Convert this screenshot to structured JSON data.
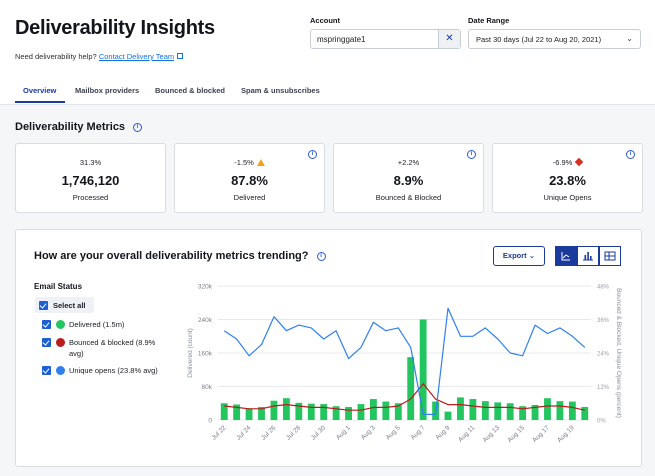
{
  "header": {
    "title": "Deliverability Insights",
    "help_text": "Need deliverability help?",
    "help_link": "Contact Delivery Team",
    "account_label": "Account",
    "account_value": "mspringgate1",
    "date_label": "Date Range",
    "date_value": "Past 30 days (Jul 22 to Aug 20, 2021)"
  },
  "tabs": [
    "Overview",
    "Mailbox providers",
    "Bounced & blocked",
    "Spam & unsubscribes"
  ],
  "metrics": {
    "title": "Deliverability Metrics",
    "cards": [
      {
        "pct": "31.3%",
        "value": "1,746,120",
        "label": "Processed"
      },
      {
        "pct": "-1.5%",
        "value": "87.8%",
        "label": "Delivered",
        "indicator": "warning-icon"
      },
      {
        "pct": "+2.2%",
        "value": "8.9%",
        "label": "Bounced & Blocked"
      },
      {
        "pct": "-6.9%",
        "value": "23.8%",
        "label": "Unique Opens",
        "indicator": "alert-icon"
      }
    ]
  },
  "trend": {
    "title": "How are your overall deliverability metrics trending?",
    "export_label": "Export",
    "email_status_title": "Email Status",
    "select_all": "Select all",
    "legend": [
      {
        "label": "Delivered (1.5m)",
        "color": "#22c55e"
      },
      {
        "label": "Bounced & blocked (8.9%",
        "label2": "avg)",
        "color": "#b91c1c"
      },
      {
        "label": "Unique opens (23.8% avg)",
        "color": "#2f80ed"
      }
    ]
  },
  "chart_data": {
    "type": "bar",
    "x": [
      "Jul 22",
      "Jul 23",
      "Jul 24",
      "Jul 25",
      "Jul 26",
      "Jul 27",
      "Jul 28",
      "Jul 29",
      "Jul 30",
      "Jul 31",
      "Aug 1",
      "Aug 2",
      "Aug 3",
      "Aug 4",
      "Aug 5",
      "Aug 6",
      "Aug 7",
      "Aug 8",
      "Aug 9",
      "Aug 10",
      "Aug 11",
      "Aug 12",
      "Aug 13",
      "Aug 14",
      "Aug 15",
      "Aug 16",
      "Aug 17",
      "Aug 18",
      "Aug 19",
      "Aug 20"
    ],
    "xticks": [
      "Jul 22",
      "Jul 24",
      "Jul 26",
      "Jul 28",
      "Jul 30",
      "Aug 1",
      "Aug 3",
      "Aug 5",
      "Aug 7",
      "Aug 9",
      "Aug 11",
      "Aug 13",
      "Aug 15",
      "Aug 17",
      "Aug 19"
    ],
    "series": [
      {
        "name": "Delivered",
        "axis": "left",
        "type": "bar",
        "color": "#22c55e",
        "values": [
          40000,
          37000,
          28000,
          31000,
          46000,
          52000,
          41000,
          39000,
          38000,
          33000,
          31000,
          38000,
          50000,
          44000,
          40000,
          150000,
          240000,
          44000,
          20000,
          54000,
          50000,
          45000,
          42000,
          40000,
          33000,
          36000,
          52000,
          45000,
          44000,
          31000
        ]
      },
      {
        "name": "Bounced & blocked",
        "axis": "right",
        "type": "line",
        "color": "#b91c1c",
        "values": [
          5,
          4.5,
          4,
          4,
          5,
          5.5,
          5,
          4.5,
          4.5,
          4,
          3.5,
          3.5,
          4.5,
          4.5,
          5,
          7.5,
          13,
          7.5,
          5.5,
          5.5,
          5,
          4.5,
          4.5,
          4.5,
          4,
          4.5,
          5,
          5,
          4.5,
          3.5
        ]
      },
      {
        "name": "Unique opens",
        "axis": "right",
        "type": "line",
        "color": "#2f80ed",
        "values": [
          32,
          29,
          23,
          27,
          37,
          32,
          34,
          33,
          29,
          32,
          22,
          26,
          35,
          32,
          33,
          26,
          2,
          2,
          40,
          30,
          30,
          33,
          29,
          24,
          23,
          34,
          31,
          33,
          30,
          26
        ]
      }
    ],
    "ylabel_left": "Delivered (count)",
    "ylabel_right": "Bounced & Blocked, Unique Opens (percent)",
    "ylim_left": [
      0,
      320000
    ],
    "ylim_right": [
      0,
      48
    ],
    "yticks_left": [
      "0",
      "80k",
      "160k",
      "240k",
      "320k"
    ],
    "yticks_right": [
      "0%",
      "12%",
      "24%",
      "36%",
      "48%"
    ],
    "grid": "horizontal"
  }
}
